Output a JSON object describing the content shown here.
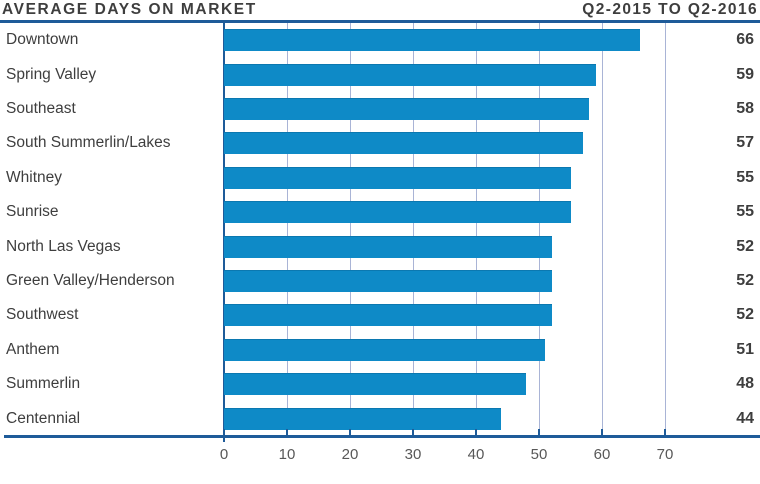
{
  "header": {
    "title": "AVERAGE DAYS ON MARKET",
    "period": "Q2-2015 TO Q2-2016"
  },
  "chart_data": {
    "type": "bar",
    "orientation": "horizontal",
    "title": "AVERAGE DAYS ON MARKET",
    "subtitle": "Q2-2015 TO Q2-2016",
    "categories": [
      "Downtown",
      "Spring Valley",
      "Southeast",
      "South Summerlin/Lakes",
      "Whitney",
      "Sunrise",
      "North Las Vegas",
      "Green Valley/Henderson",
      "Southwest",
      "Anthem",
      "Summerlin",
      "Centennial"
    ],
    "values": [
      66,
      59,
      58,
      57,
      55,
      55,
      52,
      52,
      52,
      51,
      48,
      44
    ],
    "xlabel": "",
    "ylabel": "",
    "xticks": [
      0,
      10,
      20,
      30,
      40,
      50,
      60,
      70
    ],
    "xlim": [
      0,
      85
    ],
    "grid": "vertical-gridlines-on",
    "legend": "none",
    "value_labels_position": "right-edge-bold",
    "colors": {
      "bar": "#0e8ac7",
      "axis": "#1e5b99",
      "gridline": "#a9b4d6",
      "title_text": "#3e3e3e",
      "tick_text": "#585858"
    }
  }
}
